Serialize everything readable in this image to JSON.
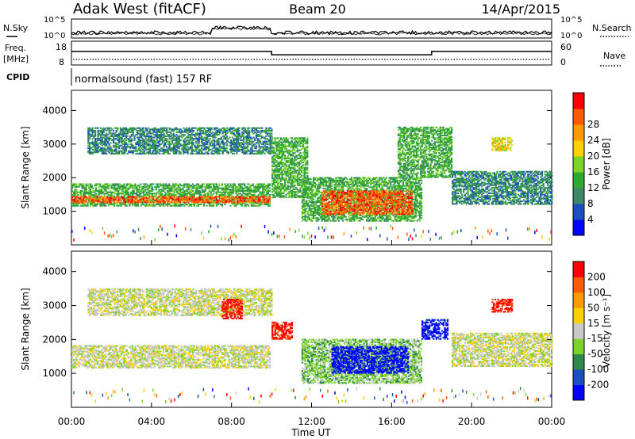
{
  "header": {
    "site": "Adak West (fitACF)",
    "beam": "Beam 20",
    "date": "14/Apr/2015"
  },
  "strips": {
    "nsky_label": "N.Sky",
    "nsky_ticks": [
      "10^5",
      "10^0"
    ],
    "nsearch_label": "N.Search",
    "nsearch_ticks": [
      "10^5",
      "10^0"
    ],
    "freq_label": "Freq.",
    "freq_unit": "[MHz]",
    "freq_ticks": [
      "18",
      "8"
    ],
    "nave_label": "Nave",
    "nave_ticks": [
      "60",
      "0"
    ],
    "cpid_label": "CPID",
    "cpid_text": "normalsound (fast) 157 RF",
    "freq_steps": [
      {
        "t0": 0,
        "t1": 10,
        "freq": 14
      },
      {
        "t0": 10,
        "t1": 18,
        "freq": 12
      },
      {
        "t0": 18,
        "t1": 24,
        "freq": 14
      }
    ]
  },
  "chart_data": [
    {
      "type": "heatmap",
      "name": "power",
      "xlabel": "",
      "ylabel": "Slant Range [km]",
      "xlim": [
        0,
        24
      ],
      "ylim": [
        0,
        4600
      ],
      "yticks": [
        1000,
        2000,
        3000,
        4000
      ],
      "colorbar": {
        "label": "Power [dB]",
        "ticks": [
          "4",
          "8",
          "12",
          "16",
          "20",
          "24",
          "28"
        ],
        "colors": [
          "#0000ff",
          "#1a4fc0",
          "#3a8a6a",
          "#2eaa2e",
          "#7cd42a",
          "#ffd000",
          "#ff9a00",
          "#ff5a00",
          "#ff0000"
        ]
      },
      "regions": [
        {
          "t0": 0.0,
          "t1": 9.9,
          "r0": 1150,
          "r1": 1800,
          "level": 3
        },
        {
          "t0": 0.0,
          "t1": 9.9,
          "r0": 1250,
          "r1": 1450,
          "level": 7
        },
        {
          "t0": 0.8,
          "t1": 10.0,
          "r0": 2700,
          "r1": 3500,
          "level": 2
        },
        {
          "t0": 10.0,
          "t1": 11.8,
          "r0": 1400,
          "r1": 3200,
          "level": 3
        },
        {
          "t0": 11.5,
          "t1": 17.5,
          "r0": 700,
          "r1": 2000,
          "level": 3
        },
        {
          "t0": 12.5,
          "t1": 17.0,
          "r0": 900,
          "r1": 1600,
          "level": 7
        },
        {
          "t0": 16.3,
          "t1": 19.0,
          "r0": 2000,
          "r1": 3500,
          "level": 3
        },
        {
          "t0": 19.0,
          "t1": 24.0,
          "r0": 1200,
          "r1": 2200,
          "level": 2
        },
        {
          "t0": 21.0,
          "t1": 22.0,
          "r0": 2800,
          "r1": 3200,
          "level": 5
        }
      ]
    },
    {
      "type": "heatmap",
      "name": "velocity",
      "xlabel": "Time UT",
      "ylabel": "Slant Range [km]",
      "xlim": [
        0,
        24
      ],
      "ylim": [
        0,
        4600
      ],
      "yticks": [
        1000,
        2000,
        3000,
        4000
      ],
      "xticks": [
        "00:00",
        "04:00",
        "08:00",
        "12:00",
        "16:00",
        "20:00",
        "00:00"
      ],
      "colorbar": {
        "label": "Velocity [m s⁻¹]",
        "ticks": [
          "200",
          "100",
          "50",
          "15",
          "-15",
          "-50",
          "-100",
          "-200"
        ],
        "colors": [
          "#0000ff",
          "#1a4fc0",
          "#2e8a4a",
          "#7cd42a",
          "#c8c8c8",
          "#ffd000",
          "#ff9a00",
          "#ff5a00",
          "#ff0000"
        ]
      },
      "regions": [
        {
          "t0": 0.0,
          "t1": 9.9,
          "r0": 1150,
          "r1": 1800,
          "level": 4
        },
        {
          "t0": 0.8,
          "t1": 10.0,
          "r0": 2700,
          "r1": 3500,
          "level": 4
        },
        {
          "t0": 7.5,
          "t1": 8.5,
          "r0": 2600,
          "r1": 3200,
          "level": 8
        },
        {
          "t0": 10.0,
          "t1": 11.0,
          "r0": 2000,
          "r1": 2500,
          "level": 8
        },
        {
          "t0": 11.5,
          "t1": 17.5,
          "r0": 700,
          "r1": 2000,
          "level": 3
        },
        {
          "t0": 13.0,
          "t1": 16.8,
          "r0": 1000,
          "r1": 1800,
          "level": 0
        },
        {
          "t0": 17.5,
          "t1": 18.8,
          "r0": 2000,
          "r1": 2600,
          "level": 0
        },
        {
          "t0": 19.0,
          "t1": 24.0,
          "r0": 1200,
          "r1": 2200,
          "level": 4
        },
        {
          "t0": 21.0,
          "t1": 22.0,
          "r0": 2800,
          "r1": 3200,
          "level": 8
        }
      ]
    }
  ]
}
